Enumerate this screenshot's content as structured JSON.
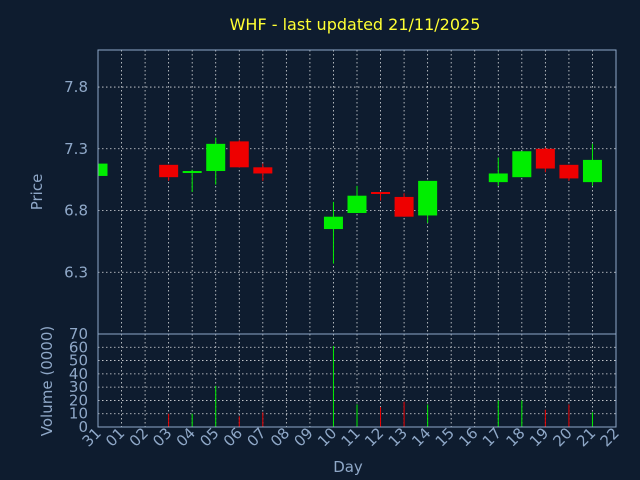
{
  "chart_data": {
    "type": "candlestick",
    "title": "WHF - last updated 21/11/2025",
    "xlabel": "Day",
    "price_panel": {
      "ylabel": "Price",
      "yticks": [
        6.3,
        6.8,
        7.3,
        7.8
      ],
      "ylim": [
        5.8,
        8.1
      ]
    },
    "volume_panel": {
      "ylabel": "Volume (0000)",
      "yticks": [
        0,
        10,
        20,
        30,
        40,
        50,
        60,
        70
      ],
      "ylim": [
        0,
        70
      ]
    },
    "x_tick_labels": [
      "31",
      "01",
      "02",
      "03",
      "04",
      "05",
      "06",
      "07",
      "08",
      "09",
      "10",
      "11",
      "12",
      "13",
      "14",
      "15",
      "16",
      "17",
      "18",
      "19",
      "20",
      "21",
      "22"
    ],
    "grid": true,
    "up_color": "#00ee00",
    "down_color": "#ee0000",
    "candles": [
      {
        "day": "31",
        "open": 7.08,
        "high": 7.18,
        "low": 7.08,
        "close": 7.18,
        "volume": 0
      },
      {
        "day": "03",
        "open": 7.17,
        "high": 7.17,
        "low": 7.04,
        "close": 7.07,
        "volume": 10
      },
      {
        "day": "04",
        "open": 7.11,
        "high": 7.13,
        "low": 6.95,
        "close": 7.12,
        "volume": 10
      },
      {
        "day": "05",
        "open": 7.12,
        "high": 7.39,
        "low": 7.01,
        "close": 7.34,
        "volume": 31
      },
      {
        "day": "06",
        "open": 7.36,
        "high": 7.37,
        "low": 7.15,
        "close": 7.15,
        "volume": 8
      },
      {
        "day": "07",
        "open": 7.15,
        "high": 7.18,
        "low": 7.04,
        "close": 7.1,
        "volume": 11
      },
      {
        "day": "10",
        "open": 6.65,
        "high": 6.87,
        "low": 6.37,
        "close": 6.75,
        "volume": 61
      },
      {
        "day": "11",
        "open": 6.78,
        "high": 7.0,
        "low": 6.78,
        "close": 6.92,
        "volume": 17
      },
      {
        "day": "12",
        "open": 6.95,
        "high": 6.95,
        "low": 6.88,
        "close": 6.94,
        "volume": 15
      },
      {
        "day": "13",
        "open": 6.91,
        "high": 6.94,
        "low": 6.75,
        "close": 6.75,
        "volume": 19
      },
      {
        "day": "14",
        "open": 6.76,
        "high": 7.04,
        "low": 6.7,
        "close": 7.04,
        "volume": 17
      },
      {
        "day": "17",
        "open": 7.03,
        "high": 7.23,
        "low": 7.0,
        "close": 7.1,
        "volume": 20
      },
      {
        "day": "18",
        "open": 7.07,
        "high": 7.28,
        "low": 7.07,
        "close": 7.28,
        "volume": 20
      },
      {
        "day": "19",
        "open": 7.3,
        "high": 7.31,
        "low": 7.11,
        "close": 7.14,
        "volume": 13
      },
      {
        "day": "20",
        "open": 7.17,
        "high": 7.17,
        "low": 7.04,
        "close": 7.06,
        "volume": 17
      },
      {
        "day": "21",
        "open": 7.03,
        "high": 7.34,
        "low": 7.0,
        "close": 7.21,
        "volume": 11
      }
    ]
  }
}
